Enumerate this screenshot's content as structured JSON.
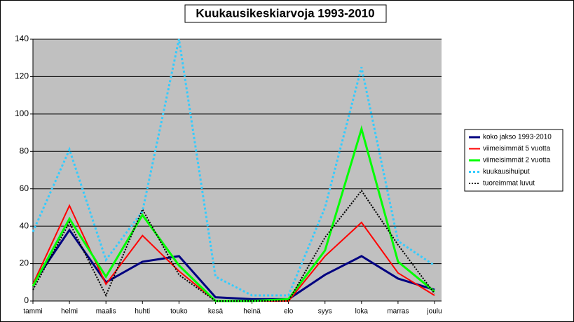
{
  "chart_data": {
    "type": "line",
    "title": "Kuukausikeskiarvoja 1993-2010",
    "categories": [
      "tammi",
      "helmi",
      "maalis",
      "huhti",
      "touko",
      "kesä",
      "heinä",
      "elo",
      "syys",
      "loka",
      "marras",
      "joulu"
    ],
    "series": [
      {
        "name": "koko jakso 1993-2010",
        "color": "#000080",
        "dash": "solid",
        "width": 3,
        "values": [
          9,
          38,
          10,
          21,
          24,
          2,
          1,
          1,
          14,
          24,
          12,
          6
        ]
      },
      {
        "name": "viimeisimmät 5 vuotta",
        "color": "#ff0000",
        "dash": "solid",
        "width": 2,
        "values": [
          9,
          51,
          9,
          35,
          16,
          0,
          0,
          0,
          24,
          42,
          15,
          3
        ]
      },
      {
        "name": "viimeisimmät 2 vuotta",
        "color": "#00ff00",
        "dash": "solid",
        "width": 3,
        "values": [
          8,
          44,
          13,
          46,
          19,
          0,
          0,
          1,
          27,
          92,
          21,
          5
        ]
      },
      {
        "name": "kuukausihuiput",
        "color": "#33ccff",
        "dash": "dotted",
        "width": 3,
        "values": [
          37,
          81,
          22,
          48,
          140,
          13,
          3,
          3,
          50,
          125,
          32,
          19
        ]
      },
      {
        "name": "tuoreimmat luvut",
        "color": "#000000",
        "dash": "dotted",
        "width": 2,
        "values": [
          6,
          42,
          3,
          49,
          14,
          0,
          0,
          0,
          34,
          59,
          30,
          4
        ]
      }
    ],
    "ylim": [
      0,
      140
    ],
    "yticks": [
      0,
      20,
      40,
      60,
      80,
      100,
      120,
      140
    ],
    "grid": true,
    "legend": "right"
  }
}
